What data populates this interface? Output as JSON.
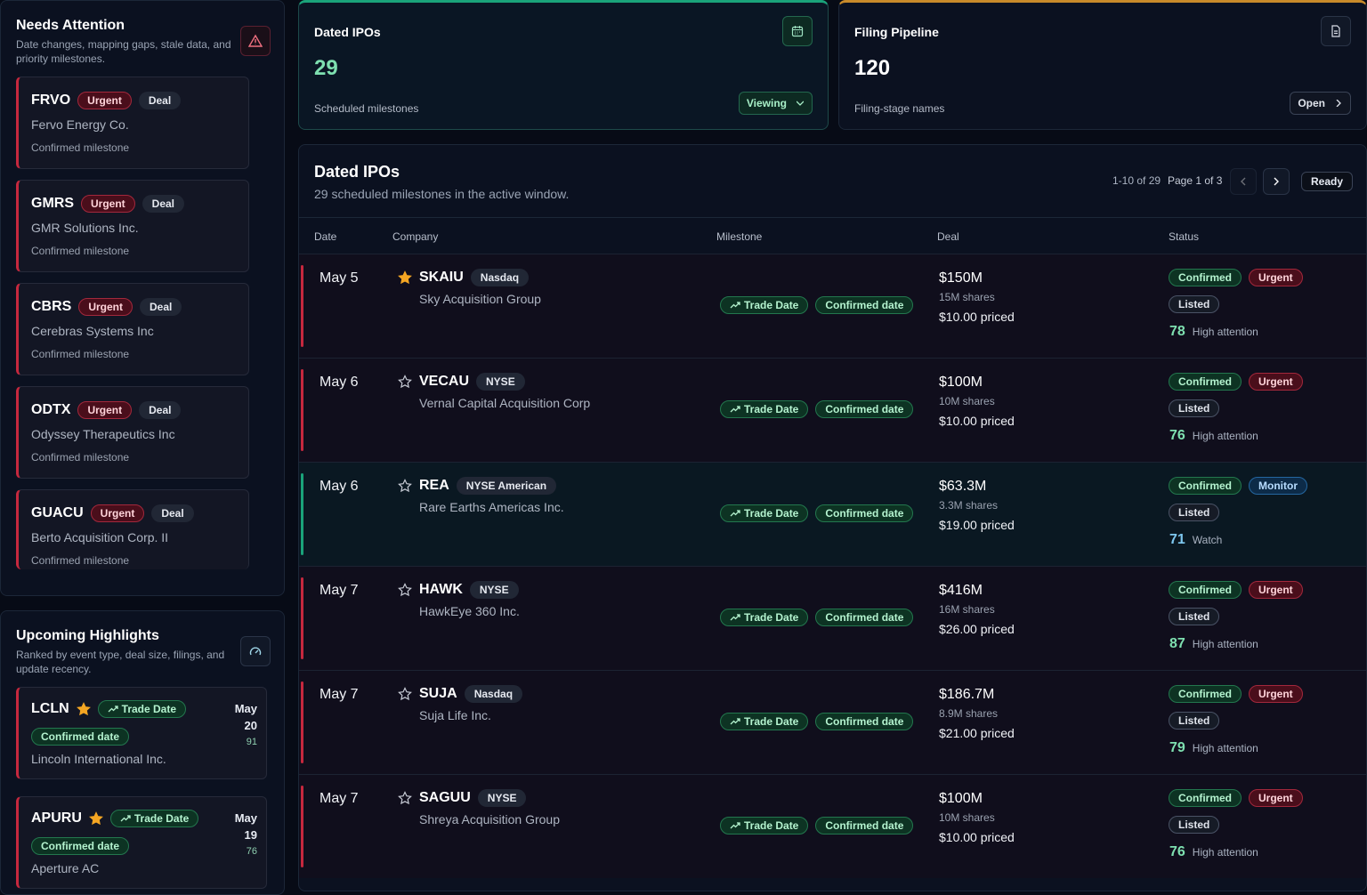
{
  "attention": {
    "title": "Needs Attention",
    "subtitle": "Date changes, mapping gaps, stale data, and priority milestones.",
    "items": [
      {
        "ticker": "FRVO",
        "tags": [
          "Urgent",
          "Deal"
        ],
        "company": "Fervo Energy Co.",
        "note": "Confirmed milestone"
      },
      {
        "ticker": "GMRS",
        "tags": [
          "Urgent",
          "Deal"
        ],
        "company": "GMR Solutions Inc.",
        "note": "Confirmed milestone"
      },
      {
        "ticker": "CBRS",
        "tags": [
          "Urgent",
          "Deal"
        ],
        "company": "Cerebras Systems Inc",
        "note": "Confirmed milestone"
      },
      {
        "ticker": "ODTX",
        "tags": [
          "Urgent",
          "Deal"
        ],
        "company": "Odyssey Therapeutics Inc",
        "note": "Confirmed milestone"
      },
      {
        "ticker": "GUACU",
        "tags": [
          "Urgent",
          "Deal"
        ],
        "company": "Berto Acquisition Corp. II",
        "note": "Confirmed milestone"
      }
    ]
  },
  "highlights": {
    "title": "Upcoming Highlights",
    "subtitle": "Ranked by event type, deal size, filings, and update recency.",
    "items": [
      {
        "ticker": "LCLN",
        "milestone": "Trade Date",
        "status": "Confirmed date",
        "company": "Lincoln International Inc.",
        "month": "May",
        "day": "20",
        "score": "91"
      },
      {
        "ticker": "APURU",
        "milestone": "Trade Date",
        "status": "Confirmed date",
        "company": "Aperture AC",
        "month": "May",
        "day": "19",
        "score": "76"
      }
    ]
  },
  "cards": [
    {
      "title": "Dated IPOs",
      "value": "29",
      "caption": "Scheduled milestones",
      "button": "Viewing"
    },
    {
      "title": "Filing Pipeline",
      "value": "120",
      "caption": "Filing-stage names",
      "button": "Open"
    }
  ],
  "table": {
    "title": "Dated IPOs",
    "subtitle": "29 scheduled milestones in the active window.",
    "range": "1-10 of 29",
    "page": "Page 1 of 3",
    "state": "Ready",
    "columns": [
      "Date",
      "Company",
      "Milestone",
      "Deal",
      "Status"
    ],
    "rows": [
      {
        "date": "May 5",
        "starred": true,
        "ticker": "SKAIU",
        "exchange": "Nasdaq",
        "company": "Sky Acquisition Group",
        "milestone": "Trade Date",
        "milestone_status": "Confirmed date",
        "amount": "$150M",
        "shares": "15M shares",
        "price": "$10.00 priced",
        "statuses": [
          "Confirmed",
          "Urgent"
        ],
        "listing": "Listed",
        "score": "78",
        "priority": "High attention"
      },
      {
        "date": "May 6",
        "starred": false,
        "ticker": "VECAU",
        "exchange": "NYSE",
        "company": "Vernal Capital Acquisition Corp",
        "milestone": "Trade Date",
        "milestone_status": "Confirmed date",
        "amount": "$100M",
        "shares": "10M shares",
        "price": "$10.00 priced",
        "statuses": [
          "Confirmed",
          "Urgent"
        ],
        "listing": "Listed",
        "score": "76",
        "priority": "High attention"
      },
      {
        "date": "May 6",
        "starred": false,
        "ticker": "REA",
        "exchange": "NYSE American",
        "company": "Rare Earths Americas Inc.",
        "milestone": "Trade Date",
        "milestone_status": "Confirmed date",
        "amount": "$63.3M",
        "shares": "3.3M shares",
        "price": "$19.00 priced",
        "statuses": [
          "Confirmed",
          "Monitor"
        ],
        "listing": "Listed",
        "score": "71",
        "priority": "Watch"
      },
      {
        "date": "May 7",
        "starred": false,
        "ticker": "HAWK",
        "exchange": "NYSE",
        "company": "HawkEye 360 Inc.",
        "milestone": "Trade Date",
        "milestone_status": "Confirmed date",
        "amount": "$416M",
        "shares": "16M shares",
        "price": "$26.00 priced",
        "statuses": [
          "Confirmed",
          "Urgent"
        ],
        "listing": "Listed",
        "score": "87",
        "priority": "High attention"
      },
      {
        "date": "May 7",
        "starred": false,
        "ticker": "SUJA",
        "exchange": "Nasdaq",
        "company": "Suja Life Inc.",
        "milestone": "Trade Date",
        "milestone_status": "Confirmed date",
        "amount": "$186.7M",
        "shares": "8.9M shares",
        "price": "$21.00 priced",
        "statuses": [
          "Confirmed",
          "Urgent"
        ],
        "listing": "Listed",
        "score": "79",
        "priority": "High attention"
      },
      {
        "date": "May 7",
        "starred": false,
        "ticker": "SAGUU",
        "exchange": "NYSE",
        "company": "Shreya Acquisition Group",
        "milestone": "Trade Date",
        "milestone_status": "Confirmed date",
        "amount": "$100M",
        "shares": "10M shares",
        "price": "$10.00 priced",
        "statuses": [
          "Confirmed",
          "Urgent"
        ],
        "listing": "Listed",
        "score": "76",
        "priority": "High attention"
      }
    ]
  }
}
